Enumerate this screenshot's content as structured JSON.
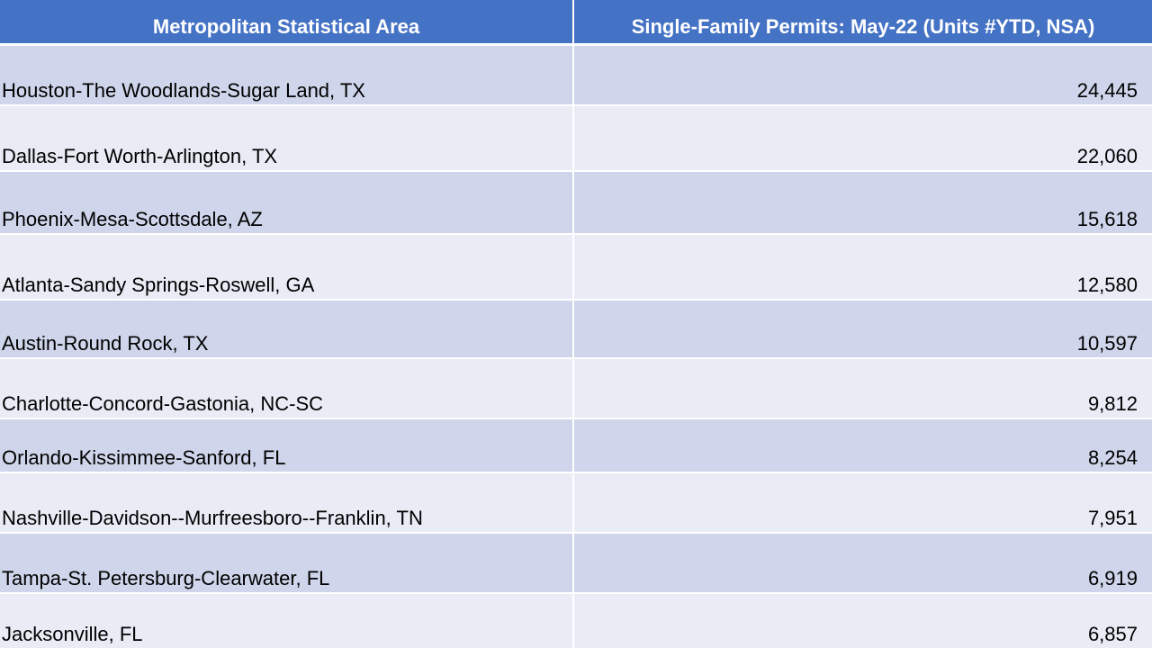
{
  "chart_data": {
    "type": "table",
    "columns": [
      "Metropolitan Statistical Area",
      "Single-Family Permits: May-22 (Units #YTD, NSA)"
    ],
    "rows": [
      {
        "area": "Houston-The Woodlands-Sugar Land, TX",
        "value": "24,445"
      },
      {
        "area": "Dallas-Fort Worth-Arlington, TX",
        "value": "22,060"
      },
      {
        "area": "Phoenix-Mesa-Scottsdale, AZ",
        "value": "15,618"
      },
      {
        "area": "Atlanta-Sandy Springs-Roswell, GA",
        "value": "12,580"
      },
      {
        "area": "Austin-Round Rock, TX",
        "value": "10,597"
      },
      {
        "area": "Charlotte-Concord-Gastonia, NC-SC",
        "value": "9,812"
      },
      {
        "area": "Orlando-Kissimmee-Sanford, FL",
        "value": "8,254"
      },
      {
        "area": "Nashville-Davidson--Murfreesboro--Franklin, TN",
        "value": "7,951"
      },
      {
        "area": "Tampa-St. Petersburg-Clearwater, FL",
        "value": "6,919"
      },
      {
        "area": "Jacksonville, FL",
        "value": "6,857"
      }
    ]
  },
  "colors": {
    "header_bg": "#4472c4",
    "row_dark": "#cfd5ea",
    "row_light": "#e9ebf5"
  }
}
